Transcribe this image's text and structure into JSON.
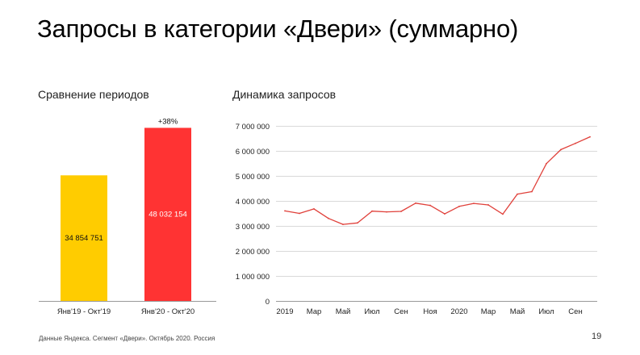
{
  "title": "Запросы в категории «Двери» (суммарно)",
  "footnote": "Данные Яндекса. Сегмент «Двери». Октябрь 2020. Россия",
  "page_number": "19",
  "colors": {
    "bar1": "#FFCC00",
    "bar2": "#FF3333",
    "line": "#E0403A",
    "grid": "#D9D9D9"
  },
  "chart_data": [
    {
      "type": "bar",
      "title": "Сравнение периодов",
      "categories": [
        "Янв'19 - Окт'19",
        "Янв'20 - Окт'20"
      ],
      "values": [
        34854751,
        48032154
      ],
      "value_labels": [
        "34 854 751",
        "48 032 154"
      ],
      "annotation": "+38%",
      "ylim": [
        0,
        60000000
      ]
    },
    {
      "type": "line",
      "title": "Динамика запросов",
      "x": [
        "2019-01",
        "2019-02",
        "2019-03",
        "2019-04",
        "2019-05",
        "2019-06",
        "2019-07",
        "2019-08",
        "2019-09",
        "2019-10",
        "2019-11",
        "2019-12",
        "2020-01",
        "2020-02",
        "2020-03",
        "2020-04",
        "2020-05",
        "2020-06",
        "2020-07",
        "2020-08",
        "2020-09",
        "2020-10"
      ],
      "values": [
        3600000,
        3500000,
        3680000,
        3300000,
        3060000,
        3120000,
        3590000,
        3560000,
        3580000,
        3910000,
        3820000,
        3480000,
        3780000,
        3900000,
        3840000,
        3470000,
        4270000,
        4370000,
        5490000,
        6050000,
        6300000,
        6560000
      ],
      "xtick_labels": [
        "2019",
        "Мар",
        "Май",
        "Июл",
        "Сен",
        "Ноя",
        "2020",
        "Мар",
        "Май",
        "Июл",
        "Сен"
      ],
      "ytick_labels": [
        "0",
        "1 000 000",
        "2 000 000",
        "3 000 000",
        "4 000 000",
        "5 000 000",
        "6 000 000",
        "7 000 000"
      ],
      "ylim": [
        0,
        7000000
      ],
      "grid": true
    }
  ]
}
